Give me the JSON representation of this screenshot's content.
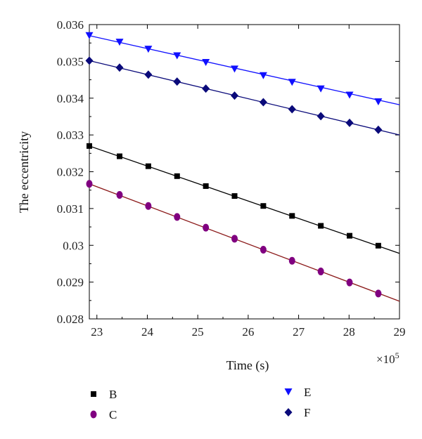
{
  "chart_data": {
    "type": "line",
    "title": "",
    "xlabel": "Time (s)",
    "ylabel": "The eccentricity",
    "x_multiplier_label": "×10",
    "x_multiplier_exponent": "5",
    "xlim": [
      22.85,
      29
    ],
    "ylim": [
      0.028,
      0.036
    ],
    "xticks": [
      23,
      24,
      25,
      26,
      27,
      28,
      29
    ],
    "xtick_labels": [
      "23",
      "24",
      "25",
      "26",
      "27",
      "28",
      "29"
    ],
    "yticks": [
      0.028,
      0.029,
      0.03,
      0.031,
      0.032,
      0.033,
      0.034,
      0.035,
      0.036
    ],
    "ytick_labels": [
      "0.028",
      "0.029",
      "0.03",
      "0.031",
      "0.032",
      "0.033",
      "0.034",
      "0.035",
      "0.036"
    ],
    "grid": false,
    "legend_position": "bottom",
    "x": [
      22.85,
      23.45,
      24.02,
      24.59,
      25.16,
      25.73,
      26.3,
      26.87,
      27.44,
      28.01,
      28.58
    ],
    "series": [
      {
        "name": "B",
        "marker": "square",
        "marker_color": "#000000",
        "line_color": "#000000",
        "values": [
          0.0327,
          0.03242,
          0.03215,
          0.03188,
          0.03161,
          0.03134,
          0.03107,
          0.0308,
          0.03053,
          0.03026,
          0.02999
        ],
        "fit_end": [
          29,
          0.02978
        ]
      },
      {
        "name": "C",
        "marker": "circle",
        "marker_color": "#800080",
        "line_color": "#8B1A1A",
        "values": [
          0.03167,
          0.03137,
          0.03107,
          0.03077,
          0.03048,
          0.03018,
          0.02988,
          0.02958,
          0.02929,
          0.02899,
          0.02869
        ],
        "fit_end": [
          29,
          0.02848
        ]
      },
      {
        "name": "E",
        "marker": "triangle-down",
        "marker_color": "#1010ff",
        "line_color": "#1010ff",
        "values": [
          0.0357,
          0.03552,
          0.03533,
          0.03515,
          0.03497,
          0.03479,
          0.03461,
          0.03443,
          0.03425,
          0.03408,
          0.0339
        ],
        "fit_end": [
          29,
          0.03382
        ]
      },
      {
        "name": "F",
        "marker": "diamond",
        "marker_color": "#0a0a7a",
        "line_color": "#0a0a7a",
        "values": [
          0.03502,
          0.03483,
          0.03464,
          0.03445,
          0.03426,
          0.03407,
          0.03389,
          0.0337,
          0.03351,
          0.03333,
          0.03314
        ],
        "fit_end": [
          29,
          0.033
        ]
      }
    ]
  }
}
